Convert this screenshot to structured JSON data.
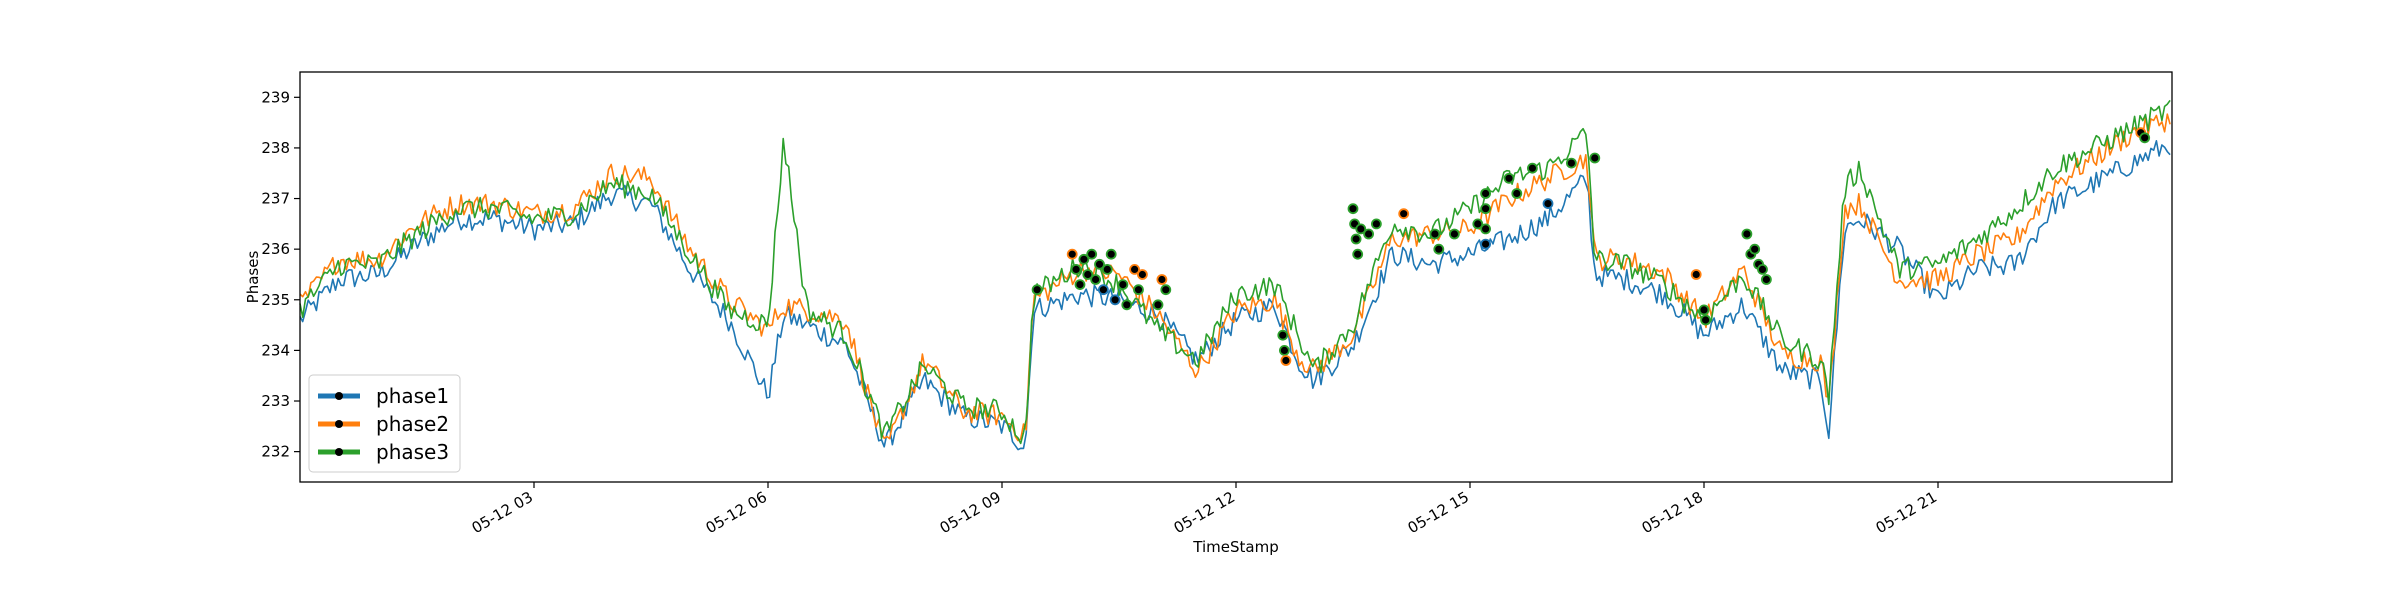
{
  "chart_data": {
    "type": "line",
    "title": "",
    "xlabel": "TimeStamp",
    "ylabel": "Phases",
    "x_tick_labels": [
      "05-12 03",
      "05-12 06",
      "05-12 09",
      "05-12 12",
      "05-12 15",
      "05-12 18",
      "05-12 21"
    ],
    "x_tick_hours": [
      3,
      6,
      9,
      12,
      15,
      18,
      21
    ],
    "xlim_hours": [
      0,
      24
    ],
    "y_ticks": [
      232,
      233,
      234,
      235,
      236,
      237,
      238,
      239
    ],
    "ylim": [
      231.4,
      239.5
    ],
    "grid": false,
    "legend_position": "lower-left",
    "series": [
      {
        "name": "phase1",
        "color": "#1f77b4",
        "x_hours": [
          0,
          0.5,
          1,
          1.5,
          2,
          2.5,
          3,
          3.5,
          4,
          4.5,
          5,
          5.5,
          6,
          6.2,
          6.5,
          7,
          7.5,
          8,
          8.5,
          9,
          9.3,
          9.4,
          10,
          10.5,
          11,
          11.5,
          12,
          12.5,
          12.8,
          13,
          13.5,
          14,
          14.5,
          15,
          15.5,
          16,
          16.5,
          16.6,
          17,
          17.5,
          18,
          18.5,
          19,
          19.5,
          19.6,
          19.8,
          20,
          20.5,
          21,
          21.5,
          22,
          22.5,
          23,
          23.5,
          24
        ],
        "values": [
          234.6,
          235.4,
          235.5,
          236.1,
          236.6,
          236.6,
          236.4,
          236.5,
          237.1,
          236.9,
          235.6,
          234.6,
          233.1,
          234.7,
          234.5,
          234.1,
          232.1,
          233.4,
          232.7,
          232.5,
          232.1,
          234.8,
          235.1,
          235.0,
          234.7,
          233.8,
          234.6,
          234.9,
          233.8,
          233.4,
          234.1,
          235.9,
          235.7,
          235.9,
          236.2,
          236.6,
          237.4,
          235.5,
          235.4,
          235.1,
          234.3,
          234.9,
          233.6,
          233.4,
          232.4,
          236.4,
          236.6,
          236.0,
          235.0,
          235.6,
          235.7,
          236.9,
          237.3,
          237.7,
          238.1
        ]
      },
      {
        "name": "phase2",
        "color": "#ff7f0e",
        "x_hours": [
          0,
          0.5,
          1,
          1.5,
          2,
          2.5,
          3,
          3.5,
          4,
          4.5,
          5,
          5.5,
          6,
          6.2,
          6.5,
          7,
          7.5,
          8,
          8.5,
          9,
          9.3,
          9.4,
          10,
          10.5,
          11,
          11.5,
          12,
          12.5,
          12.8,
          13,
          13.5,
          14,
          14.5,
          15,
          15.5,
          16,
          16.5,
          16.6,
          17,
          17.5,
          18,
          18.5,
          19,
          19.5,
          19.6,
          19.8,
          20,
          20.5,
          21,
          21.5,
          22,
          22.5,
          23,
          23.5,
          24
        ],
        "values": [
          234.9,
          235.8,
          235.8,
          236.5,
          236.9,
          236.9,
          236.7,
          236.8,
          237.5,
          237.4,
          236.0,
          235.0,
          234.4,
          234.9,
          234.8,
          234.6,
          232.0,
          233.8,
          232.8,
          232.7,
          232.3,
          235.0,
          235.6,
          235.5,
          234.7,
          233.6,
          234.8,
          235.0,
          233.9,
          233.6,
          234.3,
          236.2,
          236.3,
          236.4,
          237.0,
          237.4,
          237.8,
          235.8,
          235.8,
          235.5,
          234.6,
          235.6,
          233.9,
          233.8,
          232.9,
          236.8,
          236.9,
          235.4,
          235.4,
          235.9,
          236.2,
          237.3,
          237.8,
          238.3,
          238.6
        ]
      },
      {
        "name": "phase3",
        "color": "#2ca02c",
        "x_hours": [
          0,
          0.5,
          1,
          1.5,
          2,
          2.5,
          3,
          3.5,
          4,
          4.5,
          5,
          5.5,
          6,
          6.2,
          6.5,
          7,
          7.5,
          8,
          8.5,
          9,
          9.3,
          9.4,
          10,
          10.5,
          11,
          11.5,
          12,
          12.5,
          12.8,
          13,
          13.5,
          14,
          14.5,
          15,
          15.5,
          16,
          16.5,
          16.6,
          17,
          17.5,
          18,
          18.5,
          19,
          19.5,
          19.6,
          19.8,
          20,
          20.5,
          21,
          21.5,
          22,
          22.5,
          23,
          23.5,
          24
        ],
        "values": [
          234.8,
          235.7,
          235.7,
          236.3,
          236.8,
          236.8,
          236.6,
          236.7,
          237.3,
          237.1,
          235.9,
          234.8,
          234.5,
          238.2,
          234.8,
          234.3,
          232.3,
          233.7,
          232.9,
          232.8,
          232.2,
          235.1,
          235.7,
          235.3,
          234.4,
          233.8,
          235.1,
          235.3,
          234.3,
          233.6,
          234.5,
          236.5,
          236.3,
          236.8,
          237.4,
          237.6,
          238.3,
          235.8,
          235.7,
          235.3,
          234.6,
          235.5,
          234.2,
          233.8,
          233.1,
          237.2,
          237.6,
          235.6,
          235.7,
          236.2,
          236.8,
          237.6,
          238.0,
          238.4,
          238.8
        ]
      }
    ],
    "markers": {
      "fill": "#000000",
      "points": [
        {
          "h": 9.45,
          "v": 235.2,
          "edge": "#2ca02c"
        },
        {
          "h": 9.9,
          "v": 235.9,
          "edge": "#ff7f0e"
        },
        {
          "h": 9.95,
          "v": 235.6,
          "edge": "#2ca02c"
        },
        {
          "h": 10.0,
          "v": 235.3,
          "edge": "#2ca02c"
        },
        {
          "h": 10.05,
          "v": 235.8,
          "edge": "#2ca02c"
        },
        {
          "h": 10.1,
          "v": 235.5,
          "edge": "#2ca02c"
        },
        {
          "h": 10.15,
          "v": 235.9,
          "edge": "#2ca02c"
        },
        {
          "h": 10.2,
          "v": 235.4,
          "edge": "#2ca02c"
        },
        {
          "h": 10.25,
          "v": 235.7,
          "edge": "#2ca02c"
        },
        {
          "h": 10.3,
          "v": 235.2,
          "edge": "#1f77b4"
        },
        {
          "h": 10.35,
          "v": 235.6,
          "edge": "#2ca02c"
        },
        {
          "h": 10.4,
          "v": 235.9,
          "edge": "#2ca02c"
        },
        {
          "h": 10.45,
          "v": 235.0,
          "edge": "#1f77b4"
        },
        {
          "h": 10.55,
          "v": 235.3,
          "edge": "#2ca02c"
        },
        {
          "h": 10.6,
          "v": 234.9,
          "edge": "#2ca02c"
        },
        {
          "h": 10.7,
          "v": 235.6,
          "edge": "#ff7f0e"
        },
        {
          "h": 10.75,
          "v": 235.2,
          "edge": "#2ca02c"
        },
        {
          "h": 10.8,
          "v": 235.5,
          "edge": "#ff7f0e"
        },
        {
          "h": 11.0,
          "v": 234.9,
          "edge": "#2ca02c"
        },
        {
          "h": 11.05,
          "v": 235.4,
          "edge": "#ff7f0e"
        },
        {
          "h": 11.1,
          "v": 235.2,
          "edge": "#2ca02c"
        },
        {
          "h": 12.6,
          "v": 234.3,
          "edge": "#2ca02c"
        },
        {
          "h": 12.62,
          "v": 234.0,
          "edge": "#2ca02c"
        },
        {
          "h": 12.64,
          "v": 233.8,
          "edge": "#ff7f0e"
        },
        {
          "h": 13.5,
          "v": 236.8,
          "edge": "#2ca02c"
        },
        {
          "h": 13.52,
          "v": 236.5,
          "edge": "#2ca02c"
        },
        {
          "h": 13.54,
          "v": 236.2,
          "edge": "#2ca02c"
        },
        {
          "h": 13.56,
          "v": 235.9,
          "edge": "#2ca02c"
        },
        {
          "h": 13.6,
          "v": 236.4,
          "edge": "#2ca02c"
        },
        {
          "h": 13.7,
          "v": 236.3,
          "edge": "#2ca02c"
        },
        {
          "h": 13.8,
          "v": 236.5,
          "edge": "#2ca02c"
        },
        {
          "h": 14.15,
          "v": 236.7,
          "edge": "#ff7f0e"
        },
        {
          "h": 14.55,
          "v": 236.3,
          "edge": "#2ca02c"
        },
        {
          "h": 14.6,
          "v": 236.0,
          "edge": "#2ca02c"
        },
        {
          "h": 14.8,
          "v": 236.3,
          "edge": "#2ca02c"
        },
        {
          "h": 15.1,
          "v": 236.5,
          "edge": "#2ca02c"
        },
        {
          "h": 15.2,
          "v": 236.4,
          "edge": "#2ca02c"
        },
        {
          "h": 15.2,
          "v": 236.8,
          "edge": "#2ca02c"
        },
        {
          "h": 15.2,
          "v": 237.1,
          "edge": "#2ca02c"
        },
        {
          "h": 15.2,
          "v": 236.1,
          "edge": "#1f77b4"
        },
        {
          "h": 15.5,
          "v": 237.4,
          "edge": "#2ca02c"
        },
        {
          "h": 15.6,
          "v": 237.1,
          "edge": "#2ca02c"
        },
        {
          "h": 15.8,
          "v": 237.6,
          "edge": "#2ca02c"
        },
        {
          "h": 16.0,
          "v": 236.9,
          "edge": "#1f77b4"
        },
        {
          "h": 16.3,
          "v": 237.7,
          "edge": "#2ca02c"
        },
        {
          "h": 16.6,
          "v": 237.8,
          "edge": "#2ca02c"
        },
        {
          "h": 17.9,
          "v": 235.5,
          "edge": "#ff7f0e"
        },
        {
          "h": 18.0,
          "v": 234.8,
          "edge": "#2ca02c"
        },
        {
          "h": 18.02,
          "v": 234.6,
          "edge": "#2ca02c"
        },
        {
          "h": 18.55,
          "v": 236.3,
          "edge": "#2ca02c"
        },
        {
          "h": 18.6,
          "v": 235.9,
          "edge": "#2ca02c"
        },
        {
          "h": 18.65,
          "v": 236.0,
          "edge": "#2ca02c"
        },
        {
          "h": 18.7,
          "v": 235.7,
          "edge": "#2ca02c"
        },
        {
          "h": 18.75,
          "v": 235.6,
          "edge": "#2ca02c"
        },
        {
          "h": 18.8,
          "v": 235.4,
          "edge": "#2ca02c"
        },
        {
          "h": 23.6,
          "v": 238.3,
          "edge": "#ff7f0e"
        },
        {
          "h": 23.65,
          "v": 238.2,
          "edge": "#2ca02c"
        }
      ]
    }
  }
}
